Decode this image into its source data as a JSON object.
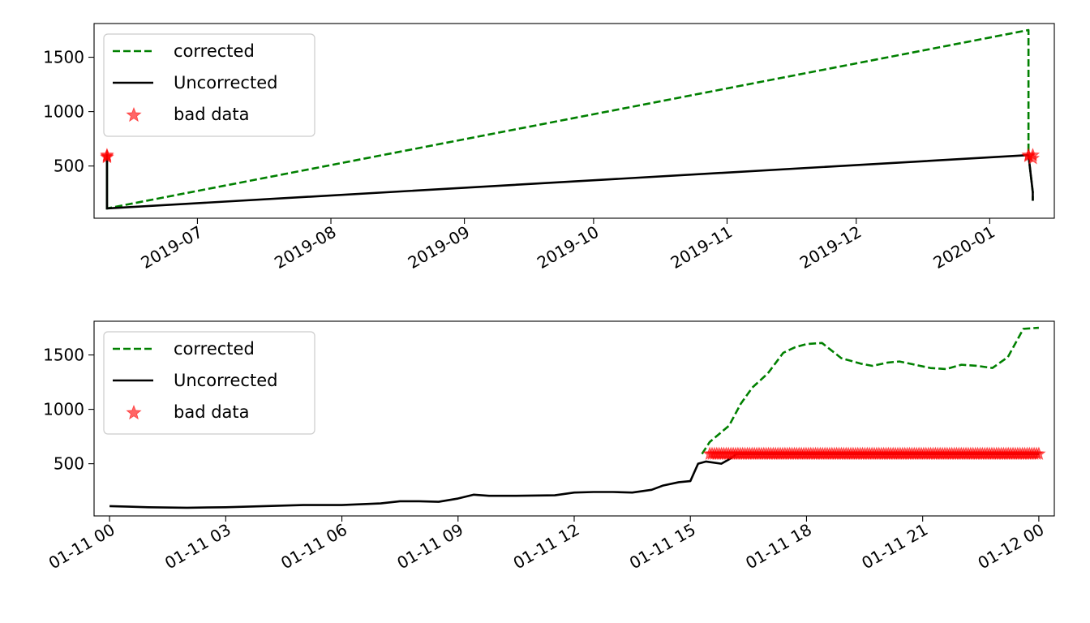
{
  "chart_data": [
    {
      "type": "line",
      "panel": "top",
      "x_type": "date",
      "xlim": [
        "2019-06-07",
        "2020-01-16"
      ],
      "ylim": [
        20,
        1810
      ],
      "grid": false,
      "legend_placement": "top-left",
      "x_ticks": [
        {
          "value": "2019-07-01",
          "label": "2019-07"
        },
        {
          "value": "2019-08-01",
          "label": "2019-08"
        },
        {
          "value": "2019-09-01",
          "label": "2019-09"
        },
        {
          "value": "2019-10-01",
          "label": "2019-10"
        },
        {
          "value": "2019-11-01",
          "label": "2019-11"
        },
        {
          "value": "2019-12-01",
          "label": "2019-12"
        },
        {
          "value": "2020-01-01",
          "label": "2020-01"
        }
      ],
      "y_ticks": [
        500,
        1000,
        1500
      ],
      "series": [
        {
          "name": "corrected",
          "style": "dashed",
          "color": "#008000",
          "points": [
            [
              "2019-06-10",
              100
            ],
            [
              "2019-06-10",
              600
            ],
            [
              "2019-06-10",
              200
            ],
            [
              "2019-06-10",
              110
            ],
            [
              "2020-01-10",
              1750
            ],
            [
              "2020-01-10",
              600
            ],
            [
              "2020-01-11",
              260
            ],
            [
              "2020-01-11",
              180
            ]
          ]
        },
        {
          "name": "Uncorrected",
          "style": "solid",
          "color": "#000000",
          "points": [
            [
              "2019-06-10",
              100
            ],
            [
              "2019-06-10",
              600
            ],
            [
              "2019-06-10",
              200
            ],
            [
              "2019-06-10",
              110
            ],
            [
              "2020-01-10",
              600
            ],
            [
              "2020-01-11",
              260
            ],
            [
              "2020-01-11",
              180
            ]
          ]
        },
        {
          "name": "bad data",
          "style": "marker",
          "marker": "star",
          "color": "#ff0000",
          "points": [
            [
              "2019-06-10",
              590
            ],
            [
              "2019-06-10",
              600
            ],
            [
              "2019-06-10",
              580
            ],
            [
              "2020-01-10",
              600
            ],
            [
              "2020-01-10",
              590
            ],
            [
              "2020-01-11",
              570
            ],
            [
              "2020-01-11",
              600
            ]
          ]
        }
      ]
    },
    {
      "type": "line",
      "panel": "bottom",
      "x_type": "hours",
      "xlim": [
        -0.4,
        24.4
      ],
      "ylim": [
        20,
        1810
      ],
      "grid": false,
      "legend_placement": "top-left",
      "x_ticks": [
        {
          "value": 0,
          "label": "01-11 00"
        },
        {
          "value": 3,
          "label": "01-11 03"
        },
        {
          "value": 6,
          "label": "01-11 06"
        },
        {
          "value": 9,
          "label": "01-11 09"
        },
        {
          "value": 12,
          "label": "01-11 12"
        },
        {
          "value": 15,
          "label": "01-11 15"
        },
        {
          "value": 18,
          "label": "01-11 18"
        },
        {
          "value": 21,
          "label": "01-11 21"
        },
        {
          "value": 24,
          "label": "01-12 00"
        }
      ],
      "y_ticks": [
        500,
        1000,
        1500
      ],
      "series": [
        {
          "name": "corrected",
          "style": "dashed",
          "color": "#008000",
          "points": [
            [
              15.3,
              590
            ],
            [
              15.5,
              700
            ],
            [
              16.0,
              850
            ],
            [
              16.3,
              1050
            ],
            [
              16.6,
              1200
            ],
            [
              17.0,
              1330
            ],
            [
              17.4,
              1520
            ],
            [
              17.7,
              1570
            ],
            [
              18.0,
              1600
            ],
            [
              18.4,
              1610
            ],
            [
              18.9,
              1470
            ],
            [
              19.4,
              1420
            ],
            [
              19.7,
              1400
            ],
            [
              20.1,
              1430
            ],
            [
              20.4,
              1440
            ],
            [
              20.8,
              1410
            ],
            [
              21.2,
              1380
            ],
            [
              21.6,
              1370
            ],
            [
              22.0,
              1410
            ],
            [
              22.4,
              1400
            ],
            [
              22.8,
              1380
            ],
            [
              23.2,
              1480
            ],
            [
              23.6,
              1740
            ],
            [
              24.0,
              1750
            ]
          ]
        },
        {
          "name": "Uncorrected",
          "style": "solid",
          "color": "#000000",
          "points": [
            [
              0.0,
              110
            ],
            [
              0.5,
              105
            ],
            [
              1.0,
              100
            ],
            [
              2.0,
              95
            ],
            [
              3.0,
              100
            ],
            [
              4.0,
              110
            ],
            [
              5.0,
              120
            ],
            [
              6.0,
              120
            ],
            [
              7.0,
              135
            ],
            [
              7.5,
              155
            ],
            [
              8.0,
              155
            ],
            [
              8.5,
              150
            ],
            [
              9.0,
              180
            ],
            [
              9.4,
              215
            ],
            [
              9.8,
              205
            ],
            [
              10.5,
              205
            ],
            [
              11.5,
              210
            ],
            [
              12.0,
              235
            ],
            [
              12.5,
              240
            ],
            [
              13.0,
              240
            ],
            [
              13.5,
              235
            ],
            [
              14.0,
              260
            ],
            [
              14.3,
              300
            ],
            [
              14.7,
              330
            ],
            [
              15.0,
              340
            ],
            [
              15.2,
              500
            ],
            [
              15.4,
              520
            ],
            [
              15.8,
              500
            ],
            [
              16.0,
              540
            ],
            [
              16.2,
              590
            ],
            [
              24.0,
              590
            ]
          ]
        },
        {
          "name": "bad data",
          "style": "marker",
          "marker": "star",
          "color": "#ff0000",
          "x_start": 15.5,
          "x_end": 24.0,
          "y": 590
        }
      ]
    }
  ]
}
